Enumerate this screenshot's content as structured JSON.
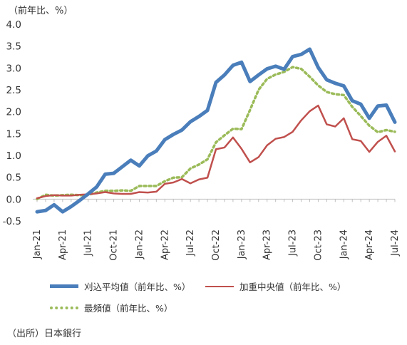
{
  "unit_label": "（前年比、%）",
  "source_note": "（出所）日本銀行",
  "colors": {
    "series1": "#4a7ebb",
    "series2": "#c0504d",
    "series3": "#9bbb59",
    "axis": "#bfbfbf",
    "text": "#333333"
  },
  "chart_data": {
    "type": "line",
    "title": "",
    "xlabel": "",
    "ylabel": "",
    "ylim": [
      -0.5,
      4.0
    ],
    "yticks": [
      "4.0",
      "3.5",
      "3.0",
      "2.5",
      "2.0",
      "1.5",
      "1.0",
      "0.5",
      "0.0",
      "-0.5"
    ],
    "ytick_values": [
      4.0,
      3.5,
      3.0,
      2.5,
      2.0,
      1.5,
      1.0,
      0.5,
      0.0,
      -0.5
    ],
    "xticks": [
      "Jan-21",
      "Apr-21",
      "Jul-21",
      "Oct-21",
      "Jan-22",
      "Apr-22",
      "Jul-22",
      "Oct-22",
      "Jan-23",
      "Apr-23",
      "Jul-23",
      "Oct-23",
      "Jan-24",
      "Apr-24",
      "Jul-24"
    ],
    "xtick_index": [
      0,
      3,
      6,
      9,
      12,
      15,
      18,
      21,
      24,
      27,
      30,
      33,
      36,
      39,
      42
    ],
    "grid": false,
    "legend": "bottom",
    "series": [
      {
        "name": "刈込平均値（前年比、%）",
        "style": "thick",
        "values": [
          -0.29,
          -0.26,
          -0.13,
          -0.29,
          -0.17,
          -0.03,
          0.12,
          0.28,
          0.57,
          0.59,
          0.74,
          0.89,
          0.76,
          0.99,
          1.1,
          1.36,
          1.48,
          1.58,
          1.77,
          1.89,
          2.03,
          2.67,
          2.84,
          3.06,
          3.13,
          2.69,
          2.84,
          2.98,
          3.04,
          2.97,
          3.26,
          3.31,
          3.43,
          3.01,
          2.73,
          2.65,
          2.59,
          2.25,
          2.17,
          1.85,
          2.13,
          2.15,
          1.76
        ]
      },
      {
        "name": "加重中央値（前年比、%）",
        "style": "thin",
        "values": [
          0.02,
          0.07,
          0.09,
          0.08,
          0.08,
          0.1,
          0.11,
          0.13,
          0.16,
          0.13,
          0.12,
          0.12,
          0.16,
          0.15,
          0.17,
          0.35,
          0.38,
          0.46,
          0.36,
          0.45,
          0.49,
          1.14,
          1.18,
          1.41,
          1.15,
          0.84,
          0.96,
          1.23,
          1.38,
          1.42,
          1.54,
          1.8,
          2.01,
          2.14,
          1.71,
          1.66,
          1.85,
          1.37,
          1.33,
          1.08,
          1.31,
          1.45,
          1.09
        ]
      },
      {
        "name": "最頻値（前年比、%）",
        "style": "dotted",
        "values": [
          0.0,
          0.1,
          0.08,
          0.09,
          0.1,
          0.09,
          0.1,
          0.15,
          0.19,
          0.19,
          0.2,
          0.19,
          0.3,
          0.3,
          0.3,
          0.41,
          0.49,
          0.5,
          0.7,
          0.79,
          0.91,
          1.3,
          1.46,
          1.61,
          1.6,
          2.04,
          2.5,
          2.75,
          2.85,
          2.91,
          3.02,
          2.98,
          2.8,
          2.6,
          2.45,
          2.4,
          2.38,
          2.11,
          1.9,
          1.68,
          1.53,
          1.58,
          1.54
        ]
      }
    ]
  }
}
